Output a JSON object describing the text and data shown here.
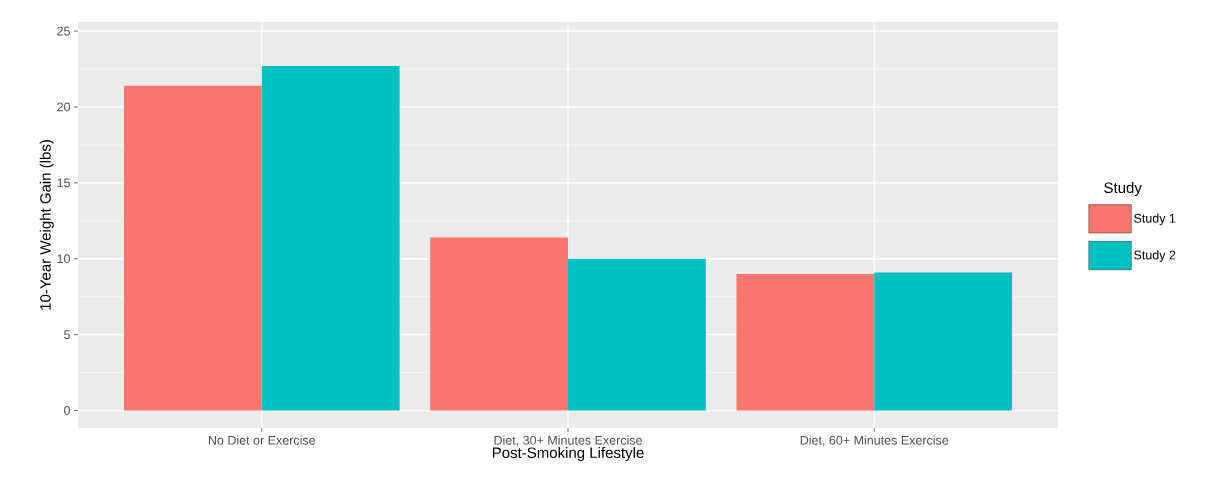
{
  "chart_data": {
    "type": "bar",
    "xlabel": "Post-Smoking Lifestyle",
    "ylabel": "10-Year Weight Gain (lbs)",
    "legend_title": "Study",
    "legend": "right",
    "grid": true,
    "categories": [
      "No Diet or Exercise",
      "Diet, 30+ Minutes Exercise",
      "Diet, 60+ Minutes Exercise"
    ],
    "ylim": [
      -1.15,
      25.6
    ],
    "yticks": [
      0,
      5,
      10,
      15,
      20,
      25
    ],
    "series": [
      {
        "name": "Study 1",
        "color": "#f8766d",
        "values": [
          21.4,
          11.4,
          9.0
        ]
      },
      {
        "name": "Study 2",
        "color": "#00bfc4",
        "values": [
          22.7,
          10.0,
          9.1
        ]
      }
    ]
  }
}
